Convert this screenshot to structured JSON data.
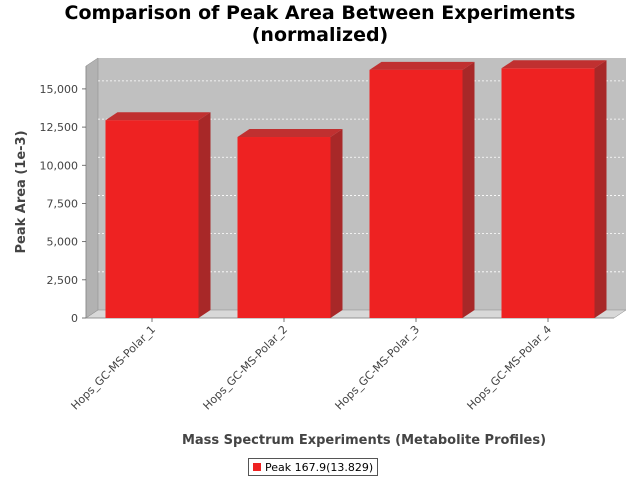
{
  "chart_data": {
    "type": "bar",
    "title": "Comparison of Peak Area Between Experiments",
    "subtitle": "(normalized)",
    "xlabel": "Mass Spectrum Experiments (Metabolite Profiles)",
    "ylabel": "Peak Area (1e-3)",
    "categories": [
      "Hops_GC-MS-Polar_1",
      "Hops_GC-MS-Polar_2",
      "Hops_GC-MS-Polar_3",
      "Hops_GC-MS-Polar_4"
    ],
    "series": [
      {
        "name": "Peak 167.9(13.829)",
        "values": [
          12950,
          11850,
          16250,
          16350
        ],
        "color": "#ee2222"
      }
    ],
    "ylim": [
      0,
      16500
    ],
    "yticks": [
      0,
      2500,
      5000,
      7500,
      10000,
      12500,
      15000
    ],
    "ytick_labels": [
      "0",
      "2,500",
      "5,000",
      "7,500",
      "10,000",
      "12,500",
      "15,000"
    ],
    "grid": true,
    "legend_position": "bottom",
    "background_color": "#c0c0c0",
    "floor_color": "#d8d8d8"
  }
}
